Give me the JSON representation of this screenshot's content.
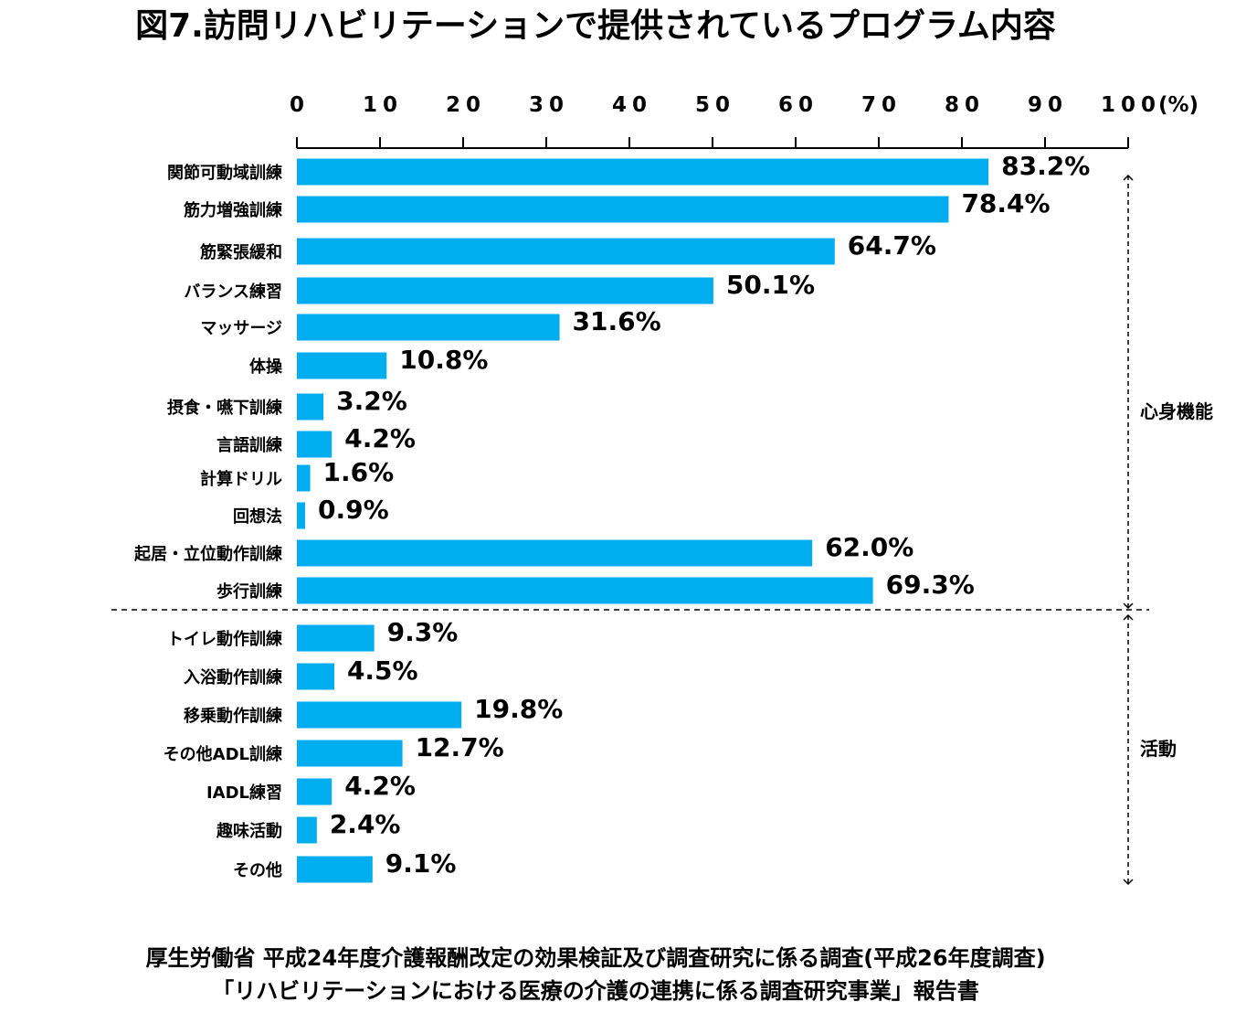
{
  "chart_data": {
    "type": "bar",
    "orientation": "horizontal",
    "title": "図7.訪問リハビリテーションで提供されているプログラム内容",
    "x_ticks": [
      "0",
      "10",
      "20",
      "30",
      "40",
      "50",
      "60",
      "70",
      "80",
      "90",
      "100"
    ],
    "x_unit": "(%)",
    "xlim": [
      0,
      100
    ],
    "bar_color": "#00AEEF",
    "categories": [
      "関節可動域訓練",
      "筋力増強訓練",
      "筋緊張緩和",
      "バランス練習",
      "マッサージ",
      "体操",
      "摂食・嚥下訓練",
      "言語訓練",
      "計算ドリル",
      "回想法",
      "起居・立位動作訓練",
      "歩行訓練",
      "トイレ動作訓練",
      "入浴動作訓練",
      "移乗動作訓練",
      "その他ADL訓練",
      "IADL練習",
      "趣味活動",
      "その他"
    ],
    "values": [
      83.2,
      78.4,
      64.7,
      50.1,
      31.6,
      10.8,
      3.2,
      4.2,
      1.6,
      0.9,
      62.0,
      69.3,
      9.3,
      4.5,
      19.8,
      12.7,
      4.2,
      2.4,
      9.1
    ],
    "value_labels": [
      "83.2%",
      "78.4%",
      "64.7%",
      "50.1%",
      "31.6%",
      "10.8%",
      "3.2%",
      "4.2%",
      "1.6%",
      "0.9%",
      "62.0%",
      "69.3%",
      "9.3%",
      "4.5%",
      "19.8%",
      "12.7%",
      "4.2%",
      "2.4%",
      "9.1%"
    ],
    "groups": [
      {
        "label": "心身機能",
        "count": 12
      },
      {
        "label": "活動",
        "count": 7
      }
    ],
    "grid": false,
    "legend": "none"
  },
  "source": {
    "line1": "厚生労働省 平成24年度介護報酬改定の効果検証及び調査研究に係る調査(平成26年度調査)",
    "line2": "「リハビリテーションにおける医療の介護の連携に係る調査研究事業」報告書"
  }
}
